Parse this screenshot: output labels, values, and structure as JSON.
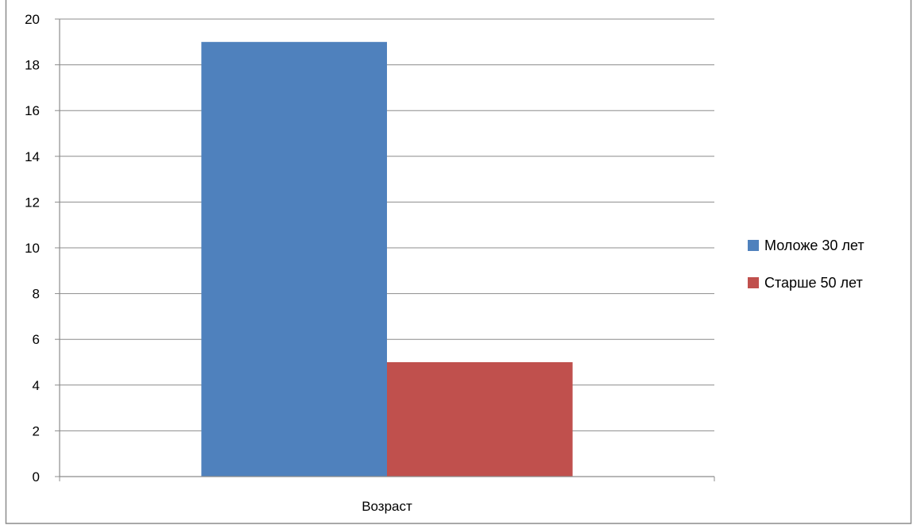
{
  "chart_data": {
    "type": "bar",
    "categories": [
      "Возраст"
    ],
    "series": [
      {
        "name": "Моложе 30 лет",
        "values": [
          19
        ],
        "color": "#4F81BD"
      },
      {
        "name": "Старше 50 лет",
        "values": [
          5
        ],
        "color": "#C0504D"
      }
    ],
    "ylim": [
      0,
      20
    ],
    "yticks": [
      0,
      2,
      4,
      6,
      8,
      10,
      12,
      14,
      16,
      18,
      20
    ],
    "grid": true,
    "legend": "right"
  }
}
